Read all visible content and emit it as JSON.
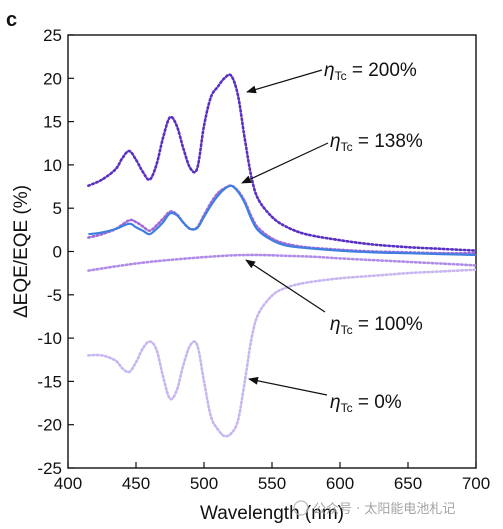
{
  "panel_label": "c",
  "watermark": "公众号 · 太阳能电池札记",
  "chart_data": {
    "type": "line",
    "xlabel": "Wavelength (nm)",
    "ylabel": "ΔEQE/EQE (%)",
    "xlim": [
      400,
      700
    ],
    "ylim": [
      -25,
      25
    ],
    "xticks": [
      400,
      450,
      500,
      550,
      600,
      650,
      700
    ],
    "yticks": [
      -25,
      -20,
      -15,
      -10,
      -5,
      0,
      5,
      10,
      15,
      20,
      25
    ],
    "grid": false,
    "annotations": [
      {
        "symbol": "η",
        "subscript": "Tc",
        "text": " = 200%",
        "series": "200%"
      },
      {
        "symbol": "η",
        "subscript": "Tc",
        "text": " = 138%",
        "series": "138%"
      },
      {
        "symbol": "η",
        "subscript": "Tc",
        "text": " = 100%",
        "series": "100%"
      },
      {
        "symbol": "η",
        "subscript": "Tc",
        "text": " = 0%",
        "series": "0%"
      }
    ],
    "series": [
      {
        "key": "200%",
        "style": "dotted",
        "color": "#5a2fc2",
        "x": [
          415,
          425,
          435,
          440,
          445,
          450,
          455,
          460,
          465,
          470,
          475,
          480,
          485,
          490,
          495,
          500,
          505,
          510,
          515,
          520,
          525,
          530,
          535,
          540,
          550,
          560,
          575,
          600,
          625,
          650,
          675,
          700
        ],
        "y": [
          7.6,
          8.3,
          9.5,
          10.8,
          11.6,
          10.6,
          9.2,
          8.3,
          10.0,
          13.2,
          15.5,
          14.5,
          11.8,
          9.6,
          9.6,
          14.5,
          17.8,
          19.0,
          20.0,
          20.3,
          18.0,
          13.0,
          8.5,
          6.0,
          4.0,
          2.9,
          2.0,
          1.3,
          0.8,
          0.5,
          0.3,
          0.1
        ]
      },
      {
        "key": "138%",
        "style": "dotted",
        "color": "#a06ad6",
        "x": [
          415,
          425,
          435,
          445,
          450,
          455,
          460,
          465,
          470,
          475,
          480,
          485,
          490,
          495,
          500,
          505,
          510,
          515,
          520,
          525,
          530,
          535,
          540,
          550,
          560,
          575,
          600,
          625,
          650,
          675,
          700
        ],
        "y": [
          1.6,
          2.0,
          2.6,
          3.6,
          3.4,
          2.9,
          2.4,
          3.0,
          3.8,
          4.6,
          4.3,
          3.3,
          2.6,
          2.8,
          4.2,
          5.6,
          6.7,
          7.3,
          7.6,
          7.0,
          5.8,
          4.0,
          2.7,
          1.5,
          0.9,
          0.5,
          0.2,
          0.0,
          -0.1,
          -0.2,
          -0.2
        ]
      },
      {
        "key": "138% measured",
        "style": "solid",
        "color": "#3f7fe0",
        "x": [
          415,
          425,
          435,
          445,
          450,
          455,
          460,
          465,
          470,
          475,
          480,
          485,
          490,
          495,
          500,
          505,
          510,
          515,
          520,
          525,
          530,
          535,
          540,
          550,
          560,
          575,
          600,
          625,
          650,
          675,
          700
        ],
        "y": [
          2.0,
          2.2,
          2.6,
          3.2,
          2.8,
          2.4,
          2.0,
          2.6,
          3.4,
          4.4,
          4.2,
          3.3,
          2.6,
          2.7,
          4.0,
          5.3,
          6.4,
          7.2,
          7.6,
          6.9,
          5.6,
          3.7,
          2.4,
          1.3,
          0.7,
          0.4,
          0.1,
          -0.1,
          -0.2,
          -0.3,
          -0.4
        ]
      },
      {
        "key": "100%",
        "style": "dotted",
        "color": "#b08ce8",
        "x": [
          415,
          440,
          460,
          480,
          500,
          520,
          540,
          560,
          580,
          600,
          625,
          650,
          675,
          700
        ],
        "y": [
          -2.2,
          -1.6,
          -1.2,
          -0.9,
          -0.65,
          -0.45,
          -0.4,
          -0.5,
          -0.6,
          -0.8,
          -1.0,
          -1.2,
          -1.4,
          -1.6
        ]
      },
      {
        "key": "0%",
        "style": "dotted",
        "color": "#c7b6f0",
        "x": [
          415,
          425,
          435,
          440,
          445,
          450,
          455,
          460,
          465,
          470,
          475,
          480,
          485,
          490,
          495,
          500,
          505,
          510,
          515,
          520,
          525,
          530,
          535,
          540,
          550,
          560,
          575,
          600,
          625,
          650,
          675,
          700
        ],
        "y": [
          -12.0,
          -12.0,
          -12.6,
          -13.5,
          -13.9,
          -12.8,
          -11.2,
          -10.4,
          -11.3,
          -14.5,
          -17.0,
          -16.0,
          -13.0,
          -10.8,
          -10.8,
          -15.0,
          -19.0,
          -20.5,
          -21.3,
          -21.0,
          -19.5,
          -15.0,
          -10.0,
          -7.2,
          -5.1,
          -4.2,
          -3.6,
          -3.1,
          -2.8,
          -2.5,
          -2.3,
          -2.1
        ]
      }
    ]
  }
}
